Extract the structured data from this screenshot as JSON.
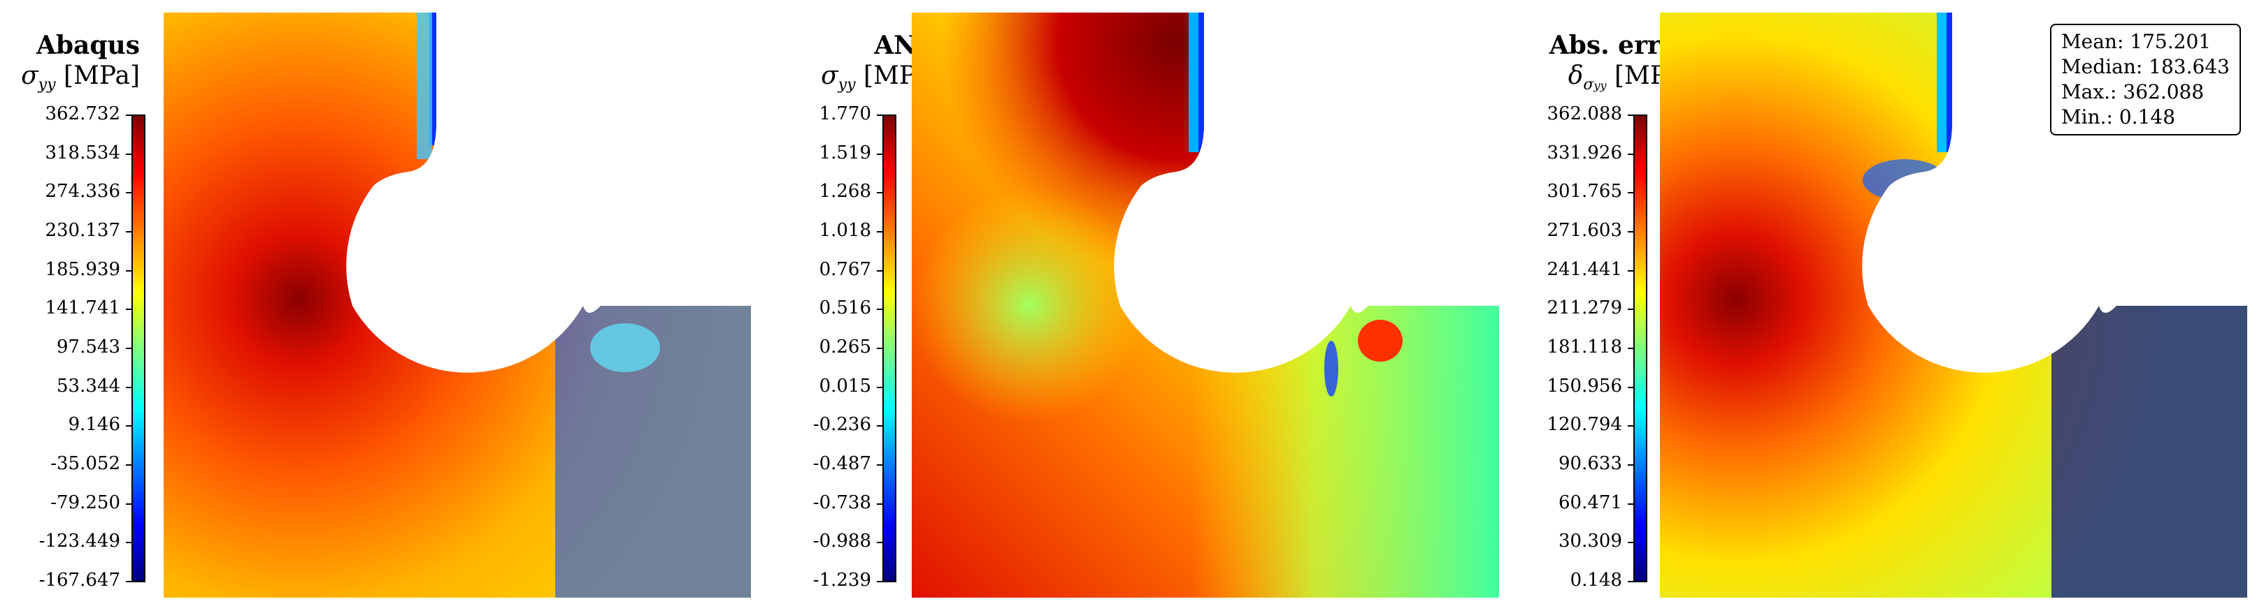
{
  "panels": [
    {
      "title": "Abaqus",
      "symbol": "σ",
      "subscript": "yy",
      "unit": "[MPa]",
      "ticks": [
        "362.732",
        "318.534",
        "274.336",
        "230.137",
        "185.939",
        "141.741",
        "97.543",
        "53.344",
        "9.146",
        "-35.052",
        "-79.250",
        "-123.449",
        "-167.647"
      ]
    },
    {
      "title": "ANN",
      "symbol": "σ",
      "subscript": "yy",
      "unit": "[MPa]",
      "ticks": [
        "1.770",
        "1.519",
        "1.268",
        "1.018",
        "0.767",
        "0.516",
        "0.265",
        "0.015",
        "-0.236",
        "-0.487",
        "-0.738",
        "-0.988",
        "-1.239"
      ]
    },
    {
      "title": "Abs. error",
      "symbol": "δ",
      "subscript": "σ",
      "subsubscript": "yy",
      "unit": "[MPa]",
      "ticks": [
        "362.088",
        "331.926",
        "301.765",
        "271.603",
        "241.441",
        "211.279",
        "181.118",
        "150.956",
        "120.794",
        "90.633",
        "60.471",
        "30.309",
        "0.148"
      ]
    }
  ],
  "stats": {
    "mean": "Mean: 175.201",
    "median": "Median: 183.643",
    "max": "Max.: 362.088",
    "min": "Min.: 0.148"
  },
  "colors": {
    "colormap": [
      "#00007f",
      "#0000ff",
      "#007fff",
      "#00ffff",
      "#7fff7f",
      "#ffff00",
      "#ff7f00",
      "#ff0000",
      "#7f0000"
    ]
  }
}
